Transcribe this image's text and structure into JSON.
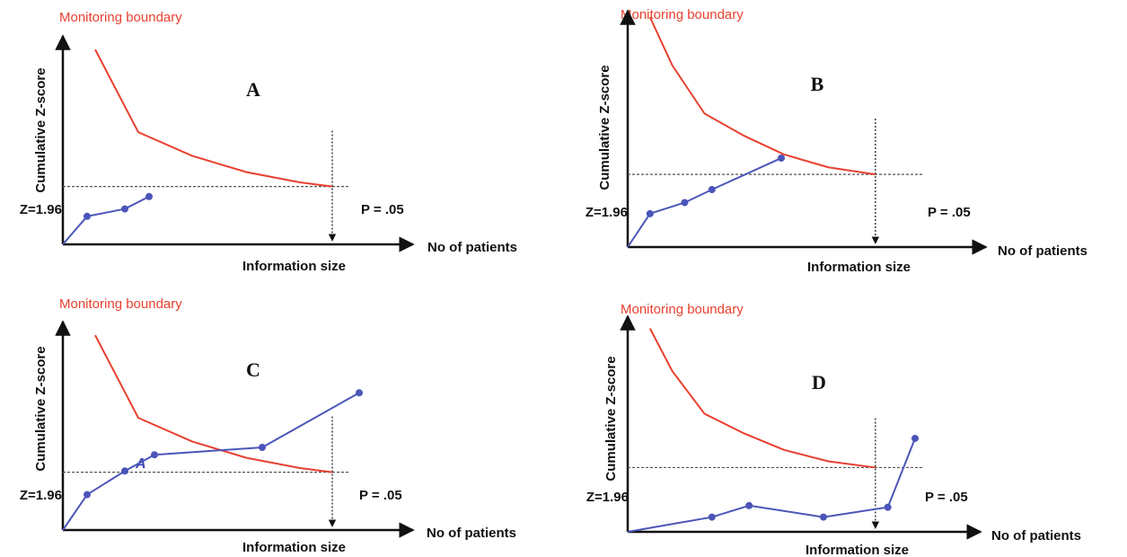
{
  "colors": {
    "boundary": "#e8402f",
    "cumulative": "#4b55b8",
    "axis": "#111111",
    "reference": "#555555"
  },
  "chart_data": [
    {
      "type": "line",
      "panel": "A",
      "title": "A",
      "boundary_label": "Monitoring boundary",
      "ylabel": "Cumulative Z-score",
      "xlabel": "No of patients",
      "information_size_label": "Information size",
      "z_label": "Z=1.96",
      "p_label": "P = .05",
      "z_value": 1.96,
      "information_size": 1,
      "point_label": "",
      "xlim": [
        0,
        1.3
      ],
      "ylim": [
        0,
        7
      ],
      "series": [
        {
          "x": [
            0.12,
            0.28,
            0.48,
            0.68,
            0.88,
            1.0
          ],
          "y": [
            6.6,
            3.8,
            3.0,
            2.45,
            2.1,
            1.96
          ]
        },
        {
          "x": [
            0,
            0.09,
            0.23,
            0.32
          ],
          "y": [
            0,
            0.95,
            1.2,
            1.62
          ],
          "markers": [
            false,
            true,
            true,
            true
          ]
        }
      ]
    },
    {
      "type": "line",
      "panel": "B",
      "title": "B",
      "boundary_label": "Monitoring boundary",
      "ylabel": "Cumulative Z-score",
      "xlabel": "No of patients",
      "information_size_label": "Information size",
      "z_label": "Z=1.96",
      "p_label": "P = .05",
      "z_value": 1.96,
      "information_size": 1,
      "point_label": "",
      "xlim": [
        0,
        1.45
      ],
      "ylim": [
        0,
        6.3
      ],
      "series": [
        {
          "x": [
            0.09,
            0.18,
            0.31,
            0.47,
            0.63,
            0.81,
            1.0
          ],
          "y": [
            6.2,
            4.9,
            3.6,
            3.0,
            2.5,
            2.15,
            1.96
          ]
        },
        {
          "x": [
            0,
            0.09,
            0.23,
            0.34,
            0.62
          ],
          "y": [
            0,
            0.9,
            1.2,
            1.55,
            2.4
          ],
          "markers": [
            false,
            true,
            true,
            true,
            true
          ]
        }
      ]
    },
    {
      "type": "line",
      "panel": "C",
      "title": "C",
      "boundary_label": "Monitoring boundary",
      "ylabel": "Cumulative Z-score",
      "xlabel": "No of patients",
      "information_size_label": "Information size",
      "z_label": "Z=1.96",
      "p_label": "P = .05",
      "z_value": 1.96,
      "information_size": 1,
      "point_label": "A",
      "xlim": [
        0,
        1.3
      ],
      "ylim": [
        0,
        7
      ],
      "series": [
        {
          "x": [
            0.12,
            0.28,
            0.48,
            0.68,
            0.88,
            1.0
          ],
          "y": [
            6.6,
            3.8,
            3.0,
            2.45,
            2.1,
            1.96
          ]
        },
        {
          "x": [
            0,
            0.09,
            0.23,
            0.34,
            0.74,
            1.1
          ],
          "y": [
            0,
            1.2,
            2.0,
            2.55,
            2.8,
            4.65
          ],
          "markers": [
            false,
            true,
            true,
            true,
            true,
            true
          ]
        }
      ]
    },
    {
      "type": "line",
      "panel": "D",
      "title": "D",
      "boundary_label": "Monitoring boundary",
      "ylabel": "Cumulative Z-score",
      "xlabel": "No of patients",
      "information_size_label": "Information size",
      "z_label": "Z=1.96",
      "p_label": "P = .05",
      "z_value": 1.96,
      "information_size": 1,
      "point_label": "",
      "xlim": [
        0,
        1.45
      ],
      "ylim": [
        0,
        6.3
      ],
      "series": [
        {
          "x": [
            0.09,
            0.18,
            0.31,
            0.47,
            0.63,
            0.81,
            1.0
          ],
          "y": [
            6.2,
            4.9,
            3.6,
            3.0,
            2.5,
            2.15,
            1.96
          ]
        },
        {
          "x": [
            0,
            0.34,
            0.49,
            0.79,
            1.05,
            1.16
          ],
          "y": [
            0,
            0.45,
            0.8,
            0.45,
            0.75,
            2.85
          ],
          "markers": [
            false,
            true,
            true,
            true,
            true,
            true
          ]
        }
      ]
    }
  ]
}
